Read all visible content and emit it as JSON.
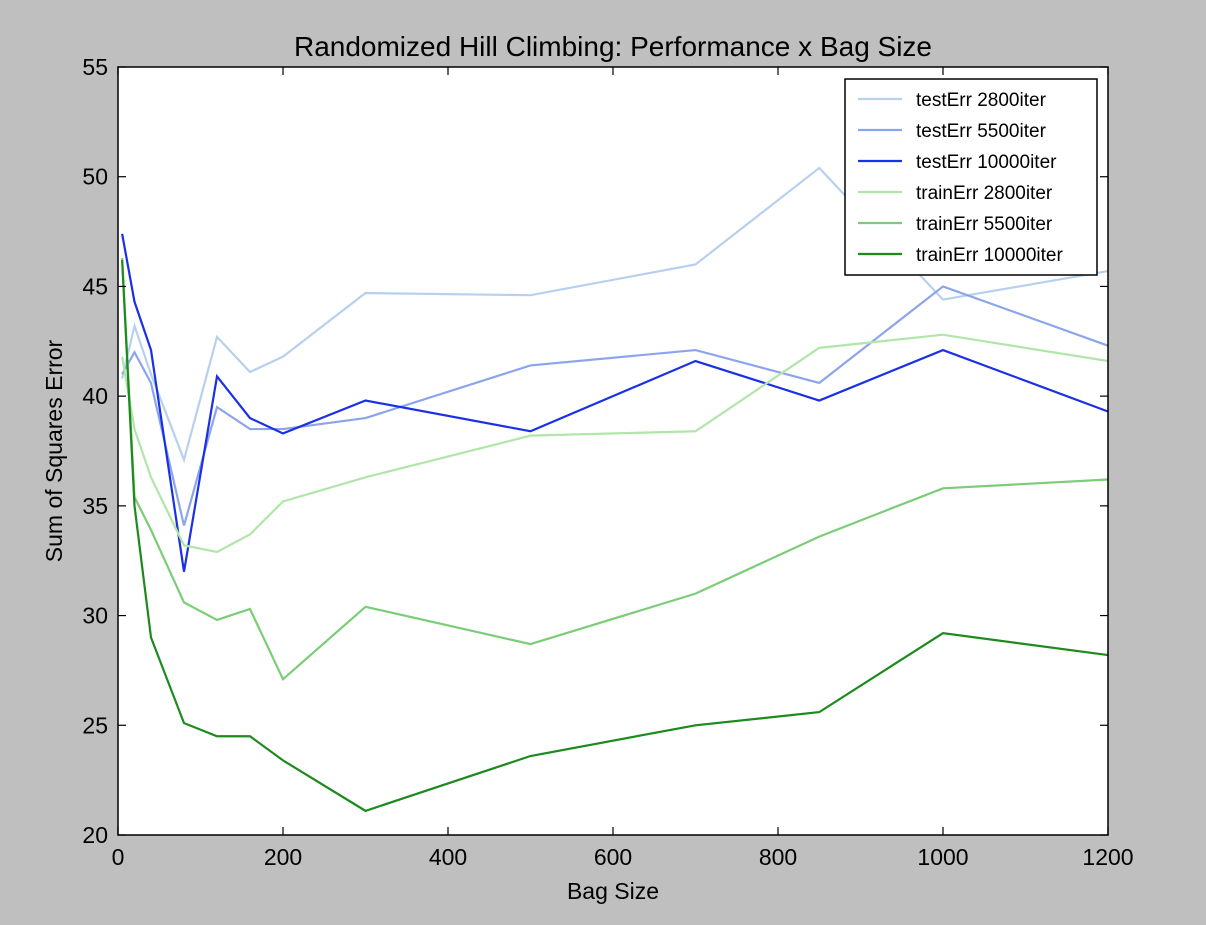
{
  "chart_data": {
    "type": "line",
    "title": "Randomized Hill Climbing: Performance x Bag Size",
    "xlabel": "Bag Size",
    "ylabel": "Sum of Squares Error",
    "xlim": [
      0,
      1200
    ],
    "ylim": [
      20,
      55
    ],
    "xticks": [
      0,
      200,
      400,
      600,
      800,
      1000,
      1200
    ],
    "yticks": [
      20,
      25,
      30,
      35,
      40,
      45,
      50,
      55
    ],
    "grid": false,
    "legend_position": "top-right",
    "x": [
      5,
      20,
      40,
      80,
      120,
      160,
      200,
      300,
      500,
      700,
      850,
      1000,
      1200
    ],
    "series": [
      {
        "name": "testErr 2800iter",
        "color": "#b8d0f0",
        "values": [
          40.8,
          43.2,
          41.0,
          37.1,
          42.7,
          41.1,
          41.8,
          44.7,
          44.6,
          46.0,
          50.4,
          44.4,
          45.7
        ]
      },
      {
        "name": "testErr 5500iter",
        "color": "#8ca4ec",
        "values": [
          41.0,
          42.0,
          40.6,
          34.1,
          39.5,
          38.5,
          38.5,
          39.0,
          41.4,
          42.1,
          40.6,
          45.0,
          42.3
        ]
      },
      {
        "name": "testErr 10000iter",
        "color": "#1a30e6",
        "values": [
          47.4,
          44.3,
          42.1,
          32.0,
          40.9,
          39.0,
          38.3,
          39.8,
          38.4,
          41.6,
          39.8,
          42.1,
          39.3
        ]
      },
      {
        "name": "trainErr 2800iter",
        "color": "#b0e6a8",
        "values": [
          41.8,
          38.5,
          36.3,
          33.2,
          32.9,
          33.7,
          35.2,
          36.3,
          38.2,
          38.4,
          42.2,
          42.8,
          41.6
        ]
      },
      {
        "name": "trainErr 5500iter",
        "color": "#7ccc78",
        "values": [
          46.3,
          35.4,
          33.9,
          30.6,
          29.8,
          30.3,
          27.1,
          30.4,
          28.7,
          31.0,
          33.6,
          35.8,
          36.2
        ]
      },
      {
        "name": "trainErr 10000iter",
        "color": "#1c8a1c",
        "values": [
          46.2,
          35.0,
          29.0,
          25.1,
          24.5,
          24.5,
          23.4,
          21.1,
          23.6,
          25.0,
          25.6,
          29.2,
          28.2
        ]
      }
    ]
  }
}
